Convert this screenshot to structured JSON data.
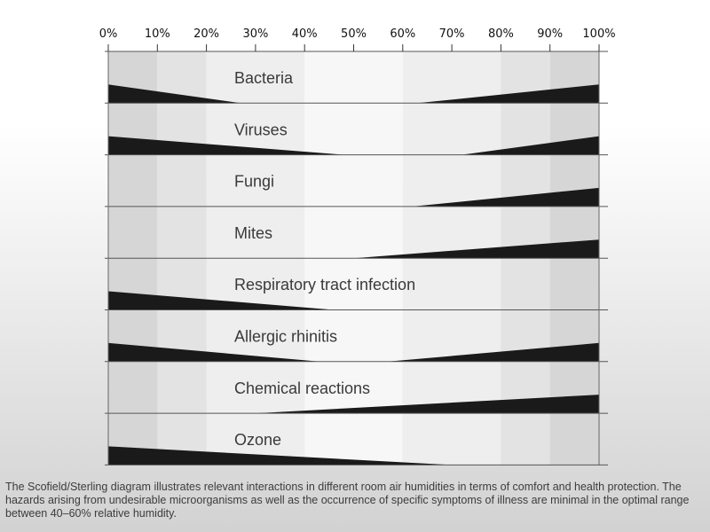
{
  "chart_data": {
    "type": "area",
    "x_axis": {
      "position": "top",
      "range": [
        0,
        100
      ],
      "ticks": [
        0,
        10,
        20,
        30,
        40,
        50,
        60,
        70,
        80,
        90,
        100
      ],
      "tick_labels": [
        "0%",
        "10%",
        "20%",
        "30%",
        "40%",
        "50%",
        "60%",
        "70%",
        "80%",
        "90%",
        "100%"
      ]
    },
    "y_range": [
      0,
      1
    ],
    "colors": {
      "band_outer": "#d6d6d6",
      "band_mid": "#e3e3e3",
      "band_inner": "#eeeeee",
      "band_center": "#f7f7f7",
      "wedge": "#1a1a1a",
      "divider": "#555555"
    },
    "rows": [
      {
        "label": "Bacteria",
        "points": [
          [
            0,
            0.36
          ],
          [
            27,
            0
          ],
          [
            63,
            0
          ],
          [
            100,
            0.36
          ]
        ]
      },
      {
        "label": "Viruses",
        "points": [
          [
            0,
            0.36
          ],
          [
            48,
            0
          ],
          [
            72,
            0
          ],
          [
            100,
            0.36
          ]
        ]
      },
      {
        "label": "Fungi",
        "points": [
          [
            0,
            0
          ],
          [
            62,
            0
          ],
          [
            100,
            0.36
          ]
        ]
      },
      {
        "label": "Mites",
        "points": [
          [
            0,
            0
          ],
          [
            50,
            0
          ],
          [
            100,
            0.36
          ]
        ]
      },
      {
        "label": "Respiratory tract infection",
        "points": [
          [
            0,
            0.36
          ],
          [
            46,
            0
          ],
          [
            100,
            0
          ]
        ]
      },
      {
        "label": "Allergic rhinitis",
        "points": [
          [
            0,
            0.36
          ],
          [
            43,
            0
          ],
          [
            57,
            0
          ],
          [
            100,
            0.36
          ]
        ]
      },
      {
        "label": "Chemical reactions",
        "points": [
          [
            0,
            0
          ],
          [
            30,
            0
          ],
          [
            100,
            0.36
          ]
        ]
      },
      {
        "label": "Ozone",
        "points": [
          [
            0,
            0.36
          ],
          [
            70,
            0
          ],
          [
            100,
            0
          ]
        ]
      }
    ]
  },
  "caption": "The Scofield/Sterling diagram illustrates relevant interactions in different room air humidities in terms of comfort and health protection. The hazards arising from undesirable microorganisms as well as the occurrence of specific symptoms of illness are minimal in the optimal range between 40–60% relative humidity."
}
